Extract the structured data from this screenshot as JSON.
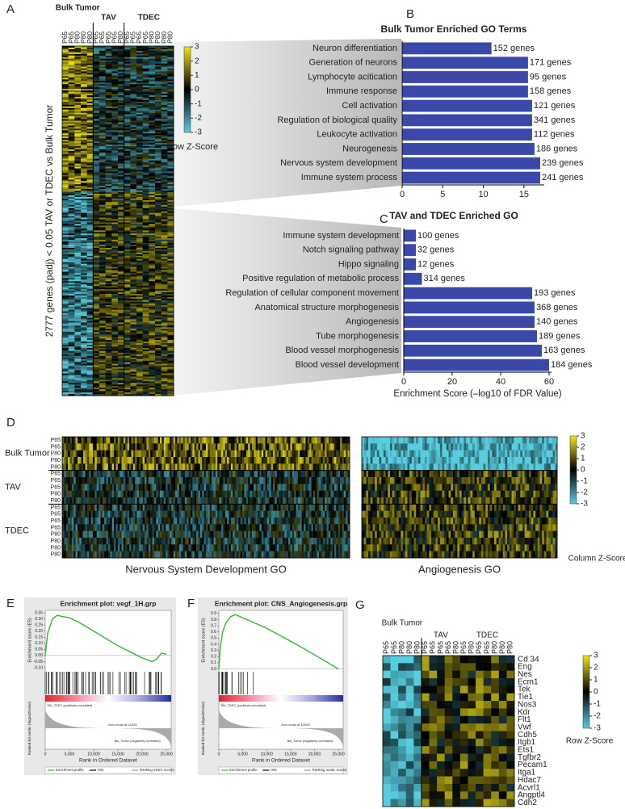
{
  "figure": {
    "panel_labels": [
      "A",
      "B",
      "C",
      "D",
      "E",
      "F",
      "G"
    ],
    "heatmap_a": {
      "groups": [
        "Bulk Tumor",
        "TAV",
        "TDEC"
      ],
      "group_sizes": [
        5,
        5,
        8
      ],
      "columns": [
        "P65",
        "P65",
        "P80",
        "P80",
        "P80",
        "P65",
        "P65",
        "P65",
        "P65",
        "P80",
        "P65",
        "P65",
        "P65",
        "P65",
        "P80",
        "P80",
        "P80",
        "P80"
      ],
      "y_label": "2777 genes (padj) < 0.05 TAV or TDEC vs Bulk Tumor",
      "scale_ticks": [
        3,
        2,
        1,
        0,
        -1,
        -2,
        -3
      ],
      "scale_title": "Row Z-Score"
    },
    "heatmap_d": {
      "groups": [
        "Bulk Tumor",
        "TAV",
        "TDEC"
      ],
      "group_sizes": [
        5,
        5,
        8
      ],
      "rows": [
        "P65",
        "P65",
        "P80",
        "P80",
        "P80",
        "P65",
        "P65",
        "P65",
        "P80",
        "P80",
        "P65",
        "P65",
        "P65",
        "P65",
        "P80",
        "P80",
        "P80",
        "P80"
      ],
      "captions": [
        "Nervous System Development GO",
        "Angiogenesis GO"
      ],
      "scale_ticks": [
        3,
        2,
        1,
        0,
        -1,
        -2,
        -3
      ],
      "scale_title": "Column Z-Score"
    },
    "heatmap_g": {
      "groups": [
        "Bulk Tumor",
        "TAV",
        "TDEC"
      ],
      "group_sizes": [
        5,
        5,
        7
      ],
      "columns": [
        "P65",
        "P65",
        "P80",
        "P80",
        "P80",
        "P65",
        "P65",
        "P65",
        "P65",
        "P80",
        "P65",
        "P80",
        "P65",
        "P65",
        "P80",
        "P80",
        "P80"
      ],
      "genes": [
        "Cd 34",
        "Eng",
        "Nes",
        "Ecm1",
        "Tek",
        "Tie1",
        "Nos3",
        "Kdr",
        "Flt1",
        "Vwf",
        "Cdh5",
        "Itgb1",
        "Ets1",
        "Tgfbr2",
        "Pecam1",
        "Itga1",
        "Hdac7",
        "Acvrl1",
        "Angptl4",
        "Cdh2"
      ],
      "scale_ticks": [
        3,
        2,
        1,
        0,
        -1,
        -2,
        -3
      ],
      "scale_title": "Row Z-Score"
    },
    "gsea_texts": {
      "metric_label": "Ranked list metric (Signal2Noise)",
      "positive": "TAV_TDEC (positively correlated)",
      "negative": "Blk_Tumor (negatively correlated)",
      "zero_cross": "Zero cross at 12025",
      "legend": [
        "Enrichment profile",
        "Hits",
        "Ranking metric scores"
      ]
    }
  },
  "chart_data": [
    {
      "type": "bar",
      "title": "Bulk Tumor Enriched GO Terms",
      "categories": [
        "Neuron differentiation",
        "Generation of neurons",
        "Lymphocyte acitication",
        "Immune response",
        "Cell activation",
        "Regulation of biological quality",
        "Leukocyte activation",
        "Neurogenesis",
        "Nervous system development",
        "Immune system process"
      ],
      "values": [
        11,
        15.5,
        15.5,
        15.5,
        16,
        16,
        16,
        16.3,
        17,
        17
      ],
      "annotations": [
        "152 genes",
        "171 genes",
        "95 genes",
        "158 genes",
        "121 genes",
        "341 genes",
        "112 genes",
        "186 genes",
        "239 genes",
        "241 genes"
      ],
      "color": "#3a48aa",
      "xlim": [
        0,
        17.5
      ],
      "xticks": [
        0,
        5,
        10,
        15
      ]
    },
    {
      "type": "bar",
      "title": "TAV and TDEC Enriched GO",
      "categories": [
        "Immune system development",
        "Notch signaling pathway",
        "Hippo signaling",
        "Positive regulation of metabolic process",
        "Regulation of cellular component movement",
        "Anatomical structure morphogenesis",
        "Angiogenesis",
        "Tube morphogenesis",
        "Blood vessel morphogenesis",
        "Blood vessel development"
      ],
      "values": [
        5,
        5,
        5,
        7.5,
        53,
        54,
        54,
        55,
        57,
        60
      ],
      "annotations": [
        "100 genes",
        "32 genes",
        "12 genes",
        "314 genes",
        "193 genes",
        "368 genes",
        "140 genes",
        "189 genes",
        "163 genes",
        "184 genes"
      ],
      "color": "#3a48aa",
      "xlim": [
        0,
        61
      ],
      "xticks": [
        0,
        20,
        40,
        60
      ],
      "x_label": "Enrichment Score (–log10 of FDR Value)"
    },
    {
      "type": "line",
      "title": "Enrichment plot: vegf_1H.grp",
      "y_label": "Enrichment score (ES)",
      "x_label": "Rank in Ordered Dataset",
      "x": [
        0,
        500,
        1500,
        2500,
        3500,
        5000,
        7500,
        10000,
        12500,
        15000,
        17500,
        20000,
        22000,
        23000,
        24000,
        25000
      ],
      "values": [
        0,
        0.18,
        0.3,
        0.33,
        0.32,
        0.31,
        0.26,
        0.2,
        0.14,
        0.08,
        0.03,
        -0.02,
        -0.05,
        -0.03,
        0.02,
        0.01
      ],
      "color": "#2eb82e",
      "xlim": [
        0,
        26000
      ],
      "ylim": [
        -0.12,
        0.37
      ],
      "xticks": [
        0,
        {
          "value": 5000,
          "label": "5,000"
        },
        {
          "value": 10000,
          "label": "10,000"
        },
        {
          "value": 15000,
          "label": "15,000"
        },
        {
          "value": 20000,
          "label": "20,000"
        },
        {
          "value": 25000,
          "label": "25,000"
        }
      ],
      "yticks": [
        0.35,
        {
          "value": 0.3,
          "label": "0.30"
        },
        0.25,
        {
          "value": 0.2,
          "label": "0.20"
        },
        0.15,
        {
          "value": 0.1,
          "label": "0.10"
        },
        0.05,
        {
          "value": 0,
          "label": "0.00"
        },
        -0.05,
        {
          "value": -0.1,
          "label": "-0.10"
        }
      ]
    },
    {
      "type": "line",
      "title": "Enrichment plot: CNS_Angiogenesis.grp",
      "y_label": "Enrichment score (ES)",
      "x_label": "Rank in Ordered Dataset",
      "x": [
        0,
        300,
        800,
        1500,
        2500,
        3500,
        5000,
        10000,
        15000,
        20000,
        25000
      ],
      "values": [
        0,
        0.35,
        0.6,
        0.75,
        0.85,
        0.88,
        0.83,
        0.66,
        0.45,
        0.23,
        0
      ],
      "color": "#2eb82e",
      "xlim": [
        0,
        26000
      ],
      "ylim": [
        -0.02,
        0.95
      ],
      "xticks": [
        0,
        {
          "value": 5000,
          "label": "5,000"
        },
        {
          "value": 10000,
          "label": "10,000"
        },
        {
          "value": 15000,
          "label": "15,000"
        },
        {
          "value": 20000,
          "label": "20,000"
        },
        {
          "value": 25000,
          "label": "25,000"
        }
      ],
      "yticks": [
        0.9,
        0.8,
        0.7,
        0.6,
        0.5,
        0.4,
        0.3,
        0.2,
        0.1,
        {
          "value": 0,
          "label": "0.0"
        }
      ]
    }
  ]
}
